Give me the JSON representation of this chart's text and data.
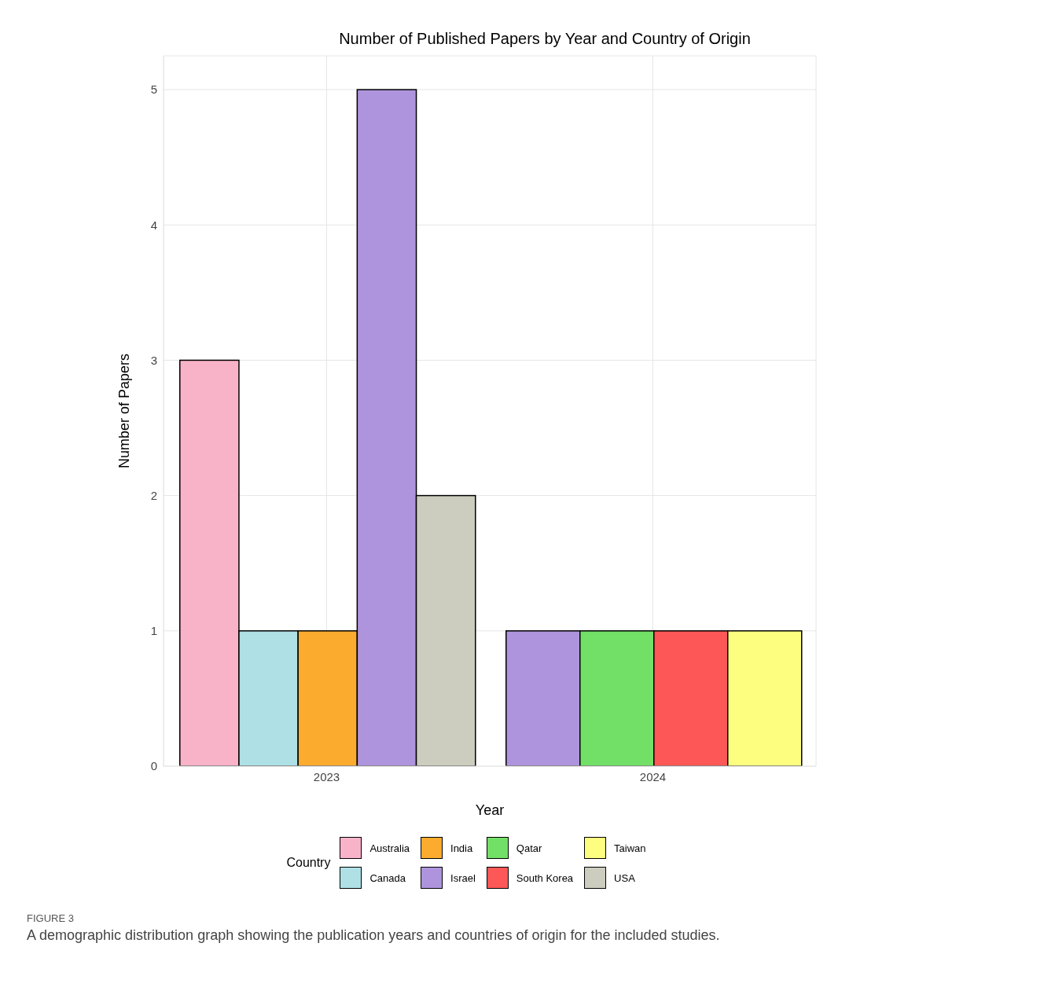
{
  "chart_data": {
    "type": "bar",
    "title": "Number of Published Papers by Year and Country of Origin",
    "xlabel": "Year",
    "ylabel": "Number of Papers",
    "legend_title": "Country",
    "categories": [
      "2023",
      "2024"
    ],
    "series": [
      {
        "name": "Australia",
        "color": "#f9b3c8",
        "values": [
          3,
          null
        ]
      },
      {
        "name": "Canada",
        "color": "#aee0e6",
        "values": [
          1,
          null
        ]
      },
      {
        "name": "India",
        "color": "#fbab2e",
        "values": [
          1,
          null
        ]
      },
      {
        "name": "Israel",
        "color": "#ae94dc",
        "values": [
          5,
          1
        ]
      },
      {
        "name": "Qatar",
        "color": "#72e066",
        "values": [
          null,
          1
        ]
      },
      {
        "name": "South Korea",
        "color": "#fd5757",
        "values": [
          null,
          1
        ]
      },
      {
        "name": "Taiwan",
        "color": "#fdfd80",
        "values": [
          null,
          1
        ]
      },
      {
        "name": "USA",
        "color": "#cdcdbf",
        "values": [
          2,
          null
        ]
      }
    ],
    "ylim": [
      0,
      5.25
    ],
    "yticks": [
      0,
      1,
      2,
      3,
      4,
      5
    ],
    "grid": true,
    "legend": "bottom",
    "annotations": [
      "FIGURE 3",
      "A demographic distribution graph showing the publication years and countries of origin for the included studies."
    ]
  }
}
